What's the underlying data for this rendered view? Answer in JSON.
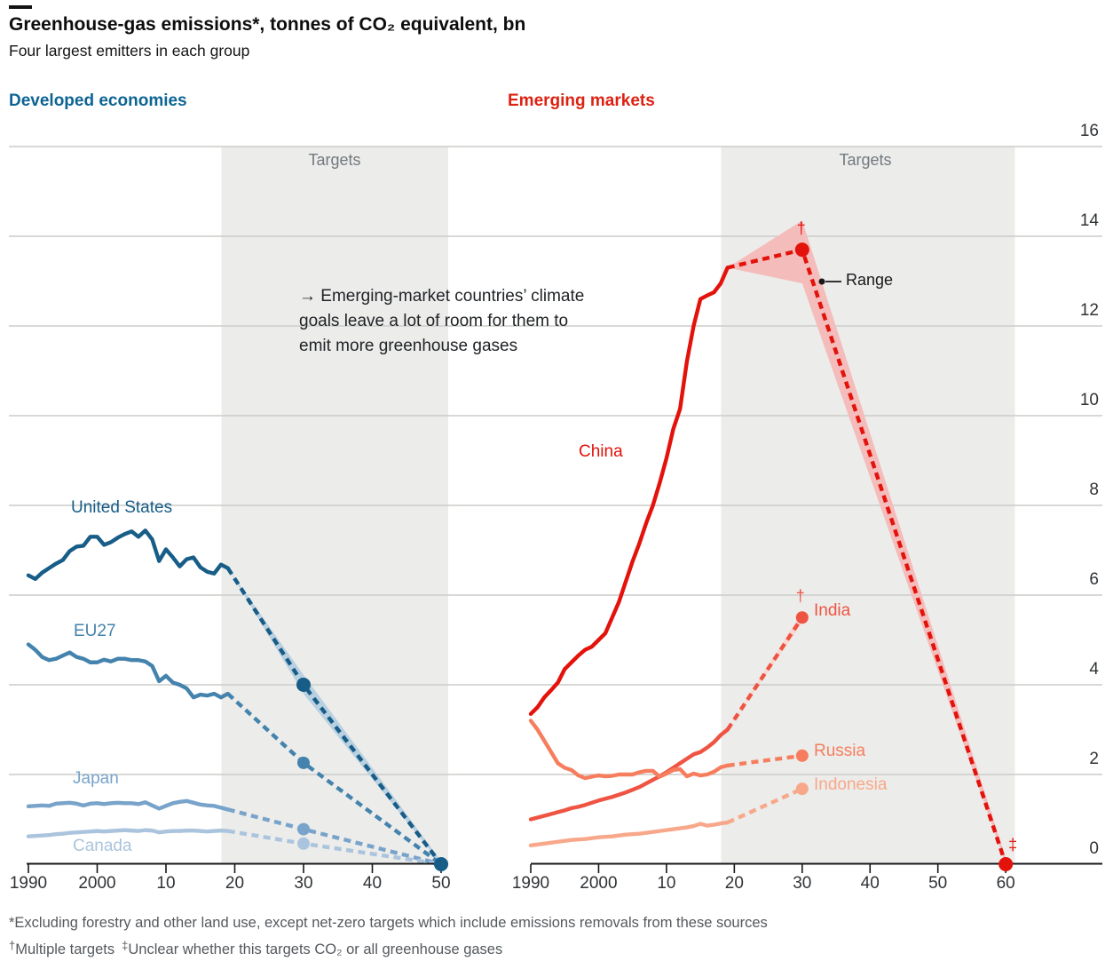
{
  "page": {
    "title": "Greenhouse-gas emissions*, tonnes of CO₂ equivalent, bn",
    "subtitle": "Four largest emitters in each group"
  },
  "chart_data": {
    "type": "line",
    "title": "Greenhouse-gas emissions*, tonnes of CO₂ equivalent, bn",
    "subtitle": "Four largest emitters in each group",
    "ylabel": "tonnes of CO₂ equivalent, bn",
    "y_axis": {
      "ticks": [
        16,
        14,
        12,
        10,
        8,
        6,
        4,
        2,
        0
      ],
      "min": 0,
      "max": 16,
      "side": "right",
      "grid": true
    },
    "annotation": {
      "lines": [
        "→ Emerging-market countries’ climate",
        "goals leave a lot of room for them to",
        "emit more greenhouse gases"
      ]
    },
    "range_label": "Range",
    "footnotes": {
      "line1": "*Excluding forestry and other land use, except net-zero targets which include emissions removals from these sources",
      "sup1": "†",
      "t1": "Multiple targets",
      "sup2": "‡",
      "t2": "Unclear whether this targets CO₂ or all greenhouse gases"
    },
    "panels": [
      {
        "label": "Developed economies",
        "label_color": "#0d6493",
        "targets_label": "Targets",
        "x_ticks": [
          {
            "label": "1990",
            "year": 1990
          },
          {
            "label": "2000",
            "year": 2000
          },
          {
            "label": "10",
            "year": 2010
          },
          {
            "label": "20",
            "year": 2020
          },
          {
            "label": "30",
            "year": 2030
          },
          {
            "label": "40",
            "year": 2040
          },
          {
            "label": "50",
            "year": 2050
          }
        ],
        "series": [
          {
            "name": "United States",
            "color": "#175d87",
            "history": {
              "start": 1990,
              "values": [
                6.44,
                6.36,
                6.5,
                6.6,
                6.7,
                6.78,
                6.98,
                7.08,
                7.1,
                7.3,
                7.3,
                7.12,
                7.18,
                7.28,
                7.36,
                7.42,
                7.3,
                7.44,
                7.24,
                6.76,
                7.02,
                6.84,
                6.64,
                6.8,
                6.84,
                6.62,
                6.52,
                6.48,
                6.68,
                6.6
              ]
            },
            "targets": [
              [
                2030,
                4.0
              ],
              [
                2050,
                0
              ]
            ],
            "dots": [
              2030,
              2050
            ],
            "band": [
              [
                2019,
                6.6,
                6.6
              ],
              [
                2030,
                4.22,
                3.8
              ],
              [
                2050,
                0.07,
                0
              ]
            ],
            "band_color": "#b9d0e1"
          },
          {
            "name": "EU27",
            "color": "#4483ad",
            "history": {
              "start": 1990,
              "values": [
                4.9,
                4.78,
                4.62,
                4.55,
                4.58,
                4.65,
                4.72,
                4.62,
                4.58,
                4.5,
                4.5,
                4.56,
                4.52,
                4.58,
                4.58,
                4.55,
                4.55,
                4.52,
                4.42,
                4.08,
                4.2,
                4.05,
                4.0,
                3.92,
                3.72,
                3.78,
                3.76,
                3.8,
                3.72,
                3.8
              ]
            },
            "targets": [
              [
                2030,
                2.26
              ],
              [
                2050,
                0
              ]
            ],
            "dots": [
              2030
            ]
          },
          {
            "name": "Japan",
            "color": "#78a3ca",
            "history": {
              "start": 1990,
              "values": [
                1.29,
                1.3,
                1.31,
                1.3,
                1.35,
                1.36,
                1.37,
                1.35,
                1.31,
                1.35,
                1.36,
                1.34,
                1.36,
                1.37,
                1.36,
                1.36,
                1.34,
                1.38,
                1.31,
                1.24,
                1.3,
                1.36,
                1.39,
                1.41,
                1.37,
                1.33,
                1.31,
                1.3,
                1.26,
                1.22
              ]
            },
            "targets": [
              [
                2030,
                0.78
              ],
              [
                2050,
                0
              ]
            ],
            "dots": [
              2030
            ]
          },
          {
            "name": "Canada",
            "color": "#abc4dd",
            "history": {
              "start": 1990,
              "values": [
                0.62,
                0.63,
                0.64,
                0.65,
                0.67,
                0.68,
                0.7,
                0.71,
                0.72,
                0.73,
                0.74,
                0.73,
                0.74,
                0.75,
                0.76,
                0.75,
                0.74,
                0.76,
                0.75,
                0.71,
                0.73,
                0.74,
                0.74,
                0.75,
                0.75,
                0.74,
                0.73,
                0.74,
                0.75,
                0.74
              ]
            },
            "targets": [
              [
                2030,
                0.46
              ],
              [
                2050,
                0
              ]
            ],
            "dots": [
              2030
            ]
          }
        ]
      },
      {
        "label": "Emerging markets",
        "label_color": "#dd2212",
        "targets_label": "Targets",
        "x_ticks": [
          {
            "label": "1990",
            "year": 1990
          },
          {
            "label": "2000",
            "year": 2000
          },
          {
            "label": "10",
            "year": 2010
          },
          {
            "label": "20",
            "year": 2020
          },
          {
            "label": "30",
            "year": 2030
          },
          {
            "label": "40",
            "year": 2040
          },
          {
            "label": "50",
            "year": 2050
          },
          {
            "label": "60",
            "year": 2060
          }
        ],
        "series": [
          {
            "name": "China",
            "color": "#e3120b",
            "history": {
              "start": 1990,
              "values": [
                3.35,
                3.5,
                3.72,
                3.88,
                4.05,
                4.35,
                4.5,
                4.65,
                4.78,
                4.85,
                5.0,
                5.15,
                5.5,
                5.85,
                6.3,
                6.75,
                7.15,
                7.6,
                8.0,
                8.5,
                9.05,
                9.7,
                10.15,
                11.2,
                12.0,
                12.6,
                12.68,
                12.75,
                12.95,
                13.3
              ]
            },
            "targets": [
              [
                2030,
                13.7
              ],
              [
                2060,
                0
              ]
            ],
            "dots": [
              2030,
              2060
            ],
            "band": [
              [
                2019,
                13.3,
                13.3
              ],
              [
                2030,
                14.35,
                12.95
              ],
              [
                2060,
                0.14,
                0
              ]
            ],
            "band_color": "#f4bcba",
            "daggers": [
              {
                "glyph": "†",
                "year": 2030,
                "dx": -6,
                "dy": -34
              },
              {
                "glyph": "‡",
                "year": 2060,
                "dx": 3,
                "dy": -32
              }
            ]
          },
          {
            "name": "India",
            "color": "#ef5442",
            "history": {
              "start": 1990,
              "values": [
                1.0,
                1.04,
                1.08,
                1.12,
                1.16,
                1.2,
                1.25,
                1.28,
                1.32,
                1.37,
                1.42,
                1.46,
                1.5,
                1.55,
                1.6,
                1.66,
                1.72,
                1.8,
                1.88,
                1.96,
                2.05,
                2.15,
                2.25,
                2.35,
                2.45,
                2.5,
                2.6,
                2.72,
                2.88,
                3.0
              ]
            },
            "targets": [
              [
                2030,
                5.5
              ]
            ],
            "dots": [
              2030
            ],
            "band": [
              [
                2019,
                3.0,
                3.0
              ],
              [
                2030,
                5.62,
                5.38
              ]
            ],
            "band_color": "#fad7cf",
            "daggers": [
              {
                "glyph": "†",
                "year": 2030,
                "dx": -7,
                "dy": -34
              }
            ]
          },
          {
            "name": "Russia",
            "color": "#f67e5e",
            "history": {
              "start": 1990,
              "values": [
                3.2,
                3.0,
                2.75,
                2.5,
                2.25,
                2.15,
                2.1,
                1.98,
                1.92,
                1.95,
                1.98,
                1.96,
                1.97,
                2.0,
                2.0,
                2.0,
                2.05,
                2.08,
                2.08,
                1.95,
                2.02,
                2.1,
                2.12,
                1.96,
                2.02,
                1.98,
                2.0,
                2.06,
                2.16,
                2.2
              ]
            },
            "targets": [
              [
                2030,
                2.42
              ]
            ],
            "dots": [
              2030
            ]
          },
          {
            "name": "Indonesia",
            "color": "#f8a88a",
            "history": {
              "start": 1990,
              "values": [
                0.42,
                0.44,
                0.46,
                0.48,
                0.5,
                0.52,
                0.54,
                0.55,
                0.56,
                0.58,
                0.6,
                0.61,
                0.62,
                0.64,
                0.66,
                0.67,
                0.68,
                0.7,
                0.72,
                0.74,
                0.76,
                0.78,
                0.8,
                0.82,
                0.85,
                0.9,
                0.86,
                0.88,
                0.91,
                0.93
              ]
            },
            "targets": [
              [
                2030,
                1.68
              ]
            ],
            "dots": [
              2030
            ]
          }
        ]
      }
    ]
  }
}
